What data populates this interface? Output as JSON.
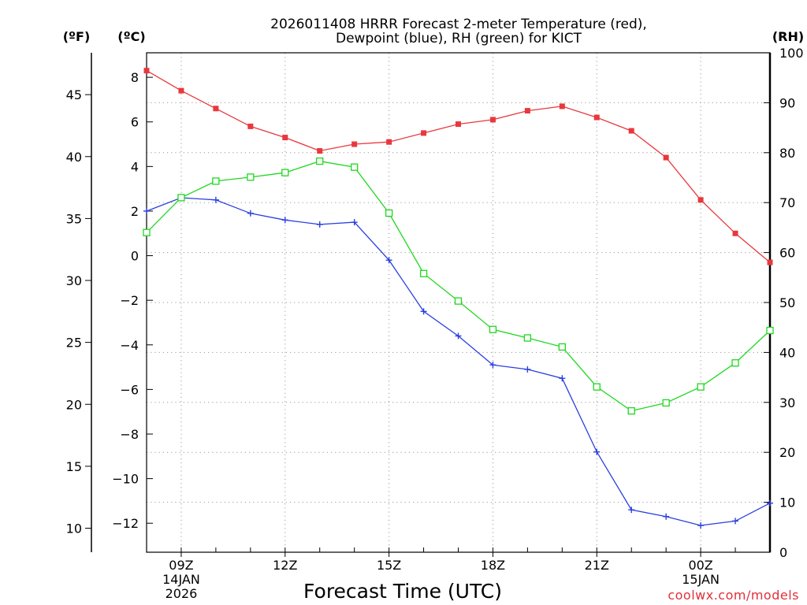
{
  "chart_data": {
    "type": "line",
    "title_line1": "2026011408 HRRR Forecast 2-meter Temperature (red),",
    "title_line2": "Dewpoint (blue), RH (green) for KICT",
    "xlabel": "Forecast Time (UTC)",
    "credit": "coolwx.com/models",
    "units": {
      "fahrenheit": "(ºF)",
      "celsius": "(ºC)",
      "rh": "(RH)"
    },
    "x_hours": [
      8,
      9,
      10,
      11,
      12,
      13,
      14,
      15,
      16,
      17,
      18,
      19,
      20,
      21,
      22,
      23,
      24,
      25,
      26
    ],
    "xlim": [
      8,
      26
    ],
    "x_ticks": [
      {
        "hour": 9,
        "label": "09Z",
        "date": "14JAN",
        "year": "2026"
      },
      {
        "hour": 12,
        "label": "12Z"
      },
      {
        "hour": 15,
        "label": "15Z"
      },
      {
        "hour": 18,
        "label": "18Z"
      },
      {
        "hour": 21,
        "label": "21Z"
      },
      {
        "hour": 24,
        "label": "00Z",
        "date": "15JAN"
      }
    ],
    "left_celsius_axis": {
      "ylim": [
        -13.3,
        9.1
      ],
      "ticks": [
        8,
        6,
        4,
        2,
        0,
        -2,
        -4,
        -6,
        -8,
        -10,
        -12
      ],
      "labels": [
        "8",
        "6",
        "4",
        "2",
        "0",
        "−2",
        "−4",
        "−6",
        "−8",
        "−10",
        "−12"
      ]
    },
    "left_fahrenheit_axis": {
      "ticks": [
        45,
        40,
        35,
        30,
        25,
        20,
        15,
        10
      ],
      "labels": [
        "45",
        "40",
        "35",
        "30",
        "25",
        "20",
        "15",
        "10"
      ]
    },
    "right_rh_axis": {
      "ylim": [
        0,
        100
      ],
      "ticks": [
        100,
        90,
        80,
        70,
        60,
        50,
        40,
        30,
        20,
        10,
        0
      ],
      "labels": [
        "100",
        "90",
        "80",
        "70",
        "60",
        "50",
        "40",
        "30",
        "20",
        "10",
        "0"
      ]
    },
    "series": [
      {
        "name": "Temperature",
        "color": "#e8383d",
        "marker": "filled-square",
        "axis": "celsius",
        "values": [
          8.3,
          7.4,
          6.6,
          5.8,
          5.3,
          4.7,
          5.0,
          5.1,
          5.5,
          5.9,
          6.1,
          6.5,
          6.7,
          6.2,
          5.6,
          4.4,
          2.5,
          1.0,
          -0.3
        ]
      },
      {
        "name": "Dewpoint",
        "color": "#2a3fe0",
        "marker": "plus",
        "axis": "celsius",
        "values": [
          2.0,
          2.6,
          2.5,
          1.9,
          1.6,
          1.4,
          1.5,
          -0.2,
          -2.5,
          -3.6,
          -4.9,
          -5.1,
          -5.5,
          -8.8,
          -11.4,
          -11.7,
          -12.1,
          -11.9,
          -11.1
        ]
      },
      {
        "name": "RH",
        "color": "#1ed81e",
        "marker": "open-square",
        "axis": "rh",
        "values": [
          64,
          71,
          74.3,
          75.1,
          76,
          78.3,
          77.1,
          67.9,
          55.8,
          50.3,
          44.6,
          42.9,
          41.1,
          33.1,
          28.3,
          29.9,
          33.1,
          37.9,
          44.4
        ]
      }
    ]
  }
}
